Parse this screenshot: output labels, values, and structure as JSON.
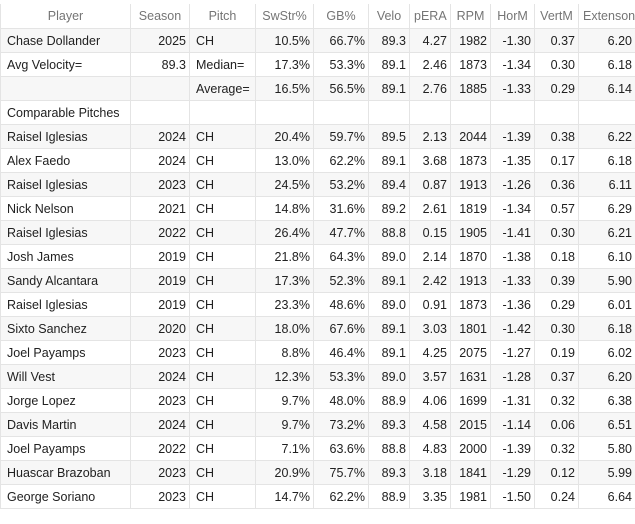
{
  "headers": {
    "player": "Player",
    "season": "Season",
    "pitch": "Pitch",
    "swstr": "SwStr%",
    "gb": "GB%",
    "velo": "Velo",
    "pera": "pERA",
    "rpm": "RPM",
    "horm": "HorM",
    "vertm": "VertM",
    "ext": "Extenson"
  },
  "summary": {
    "target": {
      "player": "Chase Dollander",
      "season": "2025",
      "pitch": "CH",
      "swstr": "10.5%",
      "gb": "66.7%",
      "velo": "89.3",
      "pera": "4.27",
      "rpm": "1982",
      "horm": "-1.30",
      "vertm": "0.37",
      "ext": "6.20"
    },
    "median": {
      "label": "Avg Velocity=",
      "avg_velocity": "89.3",
      "stat_label": "Median=",
      "swstr": "17.3%",
      "gb": "53.3%",
      "velo": "89.1",
      "pera": "2.46",
      "rpm": "1873",
      "horm": "-1.34",
      "vertm": "0.30",
      "ext": "6.18"
    },
    "average": {
      "stat_label": "Average=",
      "swstr": "16.5%",
      "gb": "56.5%",
      "velo": "89.1",
      "pera": "2.76",
      "rpm": "1885",
      "horm": "-1.33",
      "vertm": "0.29",
      "ext": "6.14"
    },
    "section_label": "Comparable Pitches"
  },
  "rows": [
    [
      "Raisel Iglesias",
      "2024",
      "CH",
      "20.4%",
      "59.7%",
      "89.5",
      "2.13",
      "2044",
      "-1.39",
      "0.38",
      "6.22"
    ],
    [
      "Alex Faedo",
      "2024",
      "CH",
      "13.0%",
      "62.2%",
      "89.1",
      "3.68",
      "1873",
      "-1.35",
      "0.17",
      "6.18"
    ],
    [
      "Raisel Iglesias",
      "2023",
      "CH",
      "24.5%",
      "53.2%",
      "89.4",
      "0.87",
      "1913",
      "-1.26",
      "0.36",
      "6.11"
    ],
    [
      "Nick Nelson",
      "2021",
      "CH",
      "14.8%",
      "31.6%",
      "89.2",
      "2.61",
      "1819",
      "-1.34",
      "0.57",
      "6.29"
    ],
    [
      "Raisel Iglesias",
      "2022",
      "CH",
      "26.4%",
      "47.7%",
      "88.8",
      "0.15",
      "1905",
      "-1.41",
      "0.30",
      "6.21"
    ],
    [
      "Josh James",
      "2019",
      "CH",
      "21.8%",
      "64.3%",
      "89.0",
      "2.14",
      "1870",
      "-1.38",
      "0.18",
      "6.10"
    ],
    [
      "Sandy Alcantara",
      "2019",
      "CH",
      "17.3%",
      "52.3%",
      "89.1",
      "2.42",
      "1913",
      "-1.33",
      "0.39",
      "5.90"
    ],
    [
      "Raisel Iglesias",
      "2019",
      "CH",
      "23.3%",
      "48.6%",
      "89.0",
      "0.91",
      "1873",
      "-1.36",
      "0.29",
      "6.01"
    ],
    [
      "Sixto Sanchez",
      "2020",
      "CH",
      "18.0%",
      "67.6%",
      "89.1",
      "3.03",
      "1801",
      "-1.42",
      "0.30",
      "6.18"
    ],
    [
      "Joel Payamps",
      "2023",
      "CH",
      "8.8%",
      "46.4%",
      "89.1",
      "4.25",
      "2075",
      "-1.27",
      "0.19",
      "6.02"
    ],
    [
      "Will Vest",
      "2024",
      "CH",
      "12.3%",
      "53.3%",
      "89.0",
      "3.57",
      "1631",
      "-1.28",
      "0.37",
      "6.20"
    ],
    [
      "Jorge Lopez",
      "2023",
      "CH",
      "9.7%",
      "48.0%",
      "88.9",
      "4.06",
      "1699",
      "-1.31",
      "0.32",
      "6.38"
    ],
    [
      "Davis Martin",
      "2024",
      "CH",
      "9.7%",
      "73.2%",
      "89.3",
      "4.58",
      "2015",
      "-1.14",
      "0.06",
      "6.51"
    ],
    [
      "Joel Payamps",
      "2022",
      "CH",
      "7.1%",
      "63.6%",
      "88.8",
      "4.83",
      "2000",
      "-1.39",
      "0.32",
      "5.80"
    ],
    [
      "Huascar Brazoban",
      "2023",
      "CH",
      "20.9%",
      "75.7%",
      "89.3",
      "3.18",
      "1841",
      "-1.29",
      "0.12",
      "5.99"
    ],
    [
      "George Soriano",
      "2023",
      "CH",
      "14.7%",
      "62.2%",
      "88.9",
      "3.35",
      "1981",
      "-1.50",
      "0.24",
      "6.64"
    ]
  ]
}
